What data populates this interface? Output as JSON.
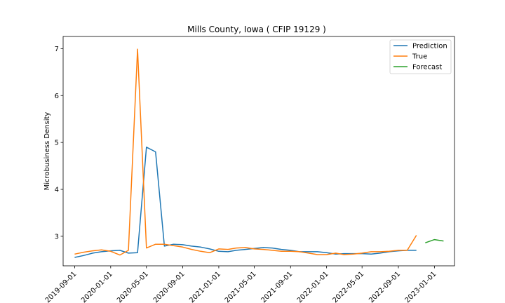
{
  "chart_data": {
    "type": "line",
    "title": "Mills County, Iowa ( CFIP 19129 )",
    "xlabel": "",
    "ylabel": "Microbusiness Density",
    "x_ticks": [
      "2019-09-01",
      "2020-01-01",
      "2020-05-01",
      "2020-09-01",
      "2021-01-01",
      "2021-05-01",
      "2021-09-01",
      "2022-01-01",
      "2022-05-01",
      "2022-09-01",
      "2023-01-01"
    ],
    "y_ticks": [
      3,
      4,
      5,
      6,
      7
    ],
    "xlim": [
      "2019-07-24",
      "2023-03-10"
    ],
    "ylim": [
      2.37,
      7.26
    ],
    "legend_position": "top-right",
    "grid": false,
    "series": [
      {
        "name": "Prediction",
        "color": "#1f77b4",
        "x": [
          "2019-09-01",
          "2019-10-01",
          "2019-11-01",
          "2019-12-01",
          "2020-01-01",
          "2020-02-01",
          "2020-03-01",
          "2020-04-01",
          "2020-05-01",
          "2020-06-01",
          "2020-07-01",
          "2020-08-01",
          "2020-09-01",
          "2020-10-01",
          "2020-11-01",
          "2020-12-01",
          "2021-01-01",
          "2021-02-01",
          "2021-03-01",
          "2021-04-01",
          "2021-05-01",
          "2021-06-01",
          "2021-07-01",
          "2021-08-01",
          "2021-09-01",
          "2021-10-01",
          "2021-11-01",
          "2021-12-01",
          "2022-01-01",
          "2022-02-01",
          "2022-03-01",
          "2022-04-01",
          "2022-05-01",
          "2022-06-01",
          "2022-07-01",
          "2022-08-01",
          "2022-09-01",
          "2022-10-01",
          "2022-11-01"
        ],
        "values": [
          2.55,
          2.59,
          2.64,
          2.67,
          2.69,
          2.7,
          2.64,
          2.65,
          4.9,
          4.8,
          2.79,
          2.83,
          2.82,
          2.79,
          2.77,
          2.73,
          2.68,
          2.67,
          2.7,
          2.72,
          2.74,
          2.76,
          2.75,
          2.72,
          2.7,
          2.67,
          2.67,
          2.67,
          2.65,
          2.62,
          2.63,
          2.63,
          2.63,
          2.62,
          2.64,
          2.67,
          2.69,
          2.7,
          2.7
        ]
      },
      {
        "name": "True",
        "color": "#ff7f0e",
        "x": [
          "2019-09-01",
          "2019-10-01",
          "2019-11-01",
          "2019-12-01",
          "2020-01-01",
          "2020-02-01",
          "2020-03-01",
          "2020-04-01",
          "2020-05-01",
          "2020-06-01",
          "2020-07-01",
          "2020-08-01",
          "2020-09-01",
          "2020-10-01",
          "2020-11-01",
          "2020-12-01",
          "2021-01-01",
          "2021-02-01",
          "2021-03-01",
          "2021-04-01",
          "2021-05-01",
          "2021-06-01",
          "2021-07-01",
          "2021-08-01",
          "2021-09-01",
          "2021-10-01",
          "2021-11-01",
          "2021-12-01",
          "2022-01-01",
          "2022-02-01",
          "2022-03-01",
          "2022-04-01",
          "2022-05-01",
          "2022-06-01",
          "2022-07-01",
          "2022-08-01",
          "2022-09-01",
          "2022-10-01",
          "2022-11-01"
        ],
        "values": [
          2.62,
          2.66,
          2.69,
          2.71,
          2.68,
          2.6,
          2.7,
          6.99,
          2.75,
          2.83,
          2.83,
          2.8,
          2.77,
          2.72,
          2.68,
          2.65,
          2.73,
          2.72,
          2.75,
          2.76,
          2.73,
          2.72,
          2.7,
          2.68,
          2.68,
          2.67,
          2.64,
          2.61,
          2.61,
          2.64,
          2.61,
          2.62,
          2.64,
          2.67,
          2.67,
          2.68,
          2.7,
          2.7,
          3.02
        ]
      },
      {
        "name": "Forecast",
        "color": "#2ca02c",
        "x": [
          "2022-12-01",
          "2023-01-01",
          "2023-02-01"
        ],
        "values": [
          2.86,
          2.93,
          2.9
        ]
      }
    ]
  }
}
